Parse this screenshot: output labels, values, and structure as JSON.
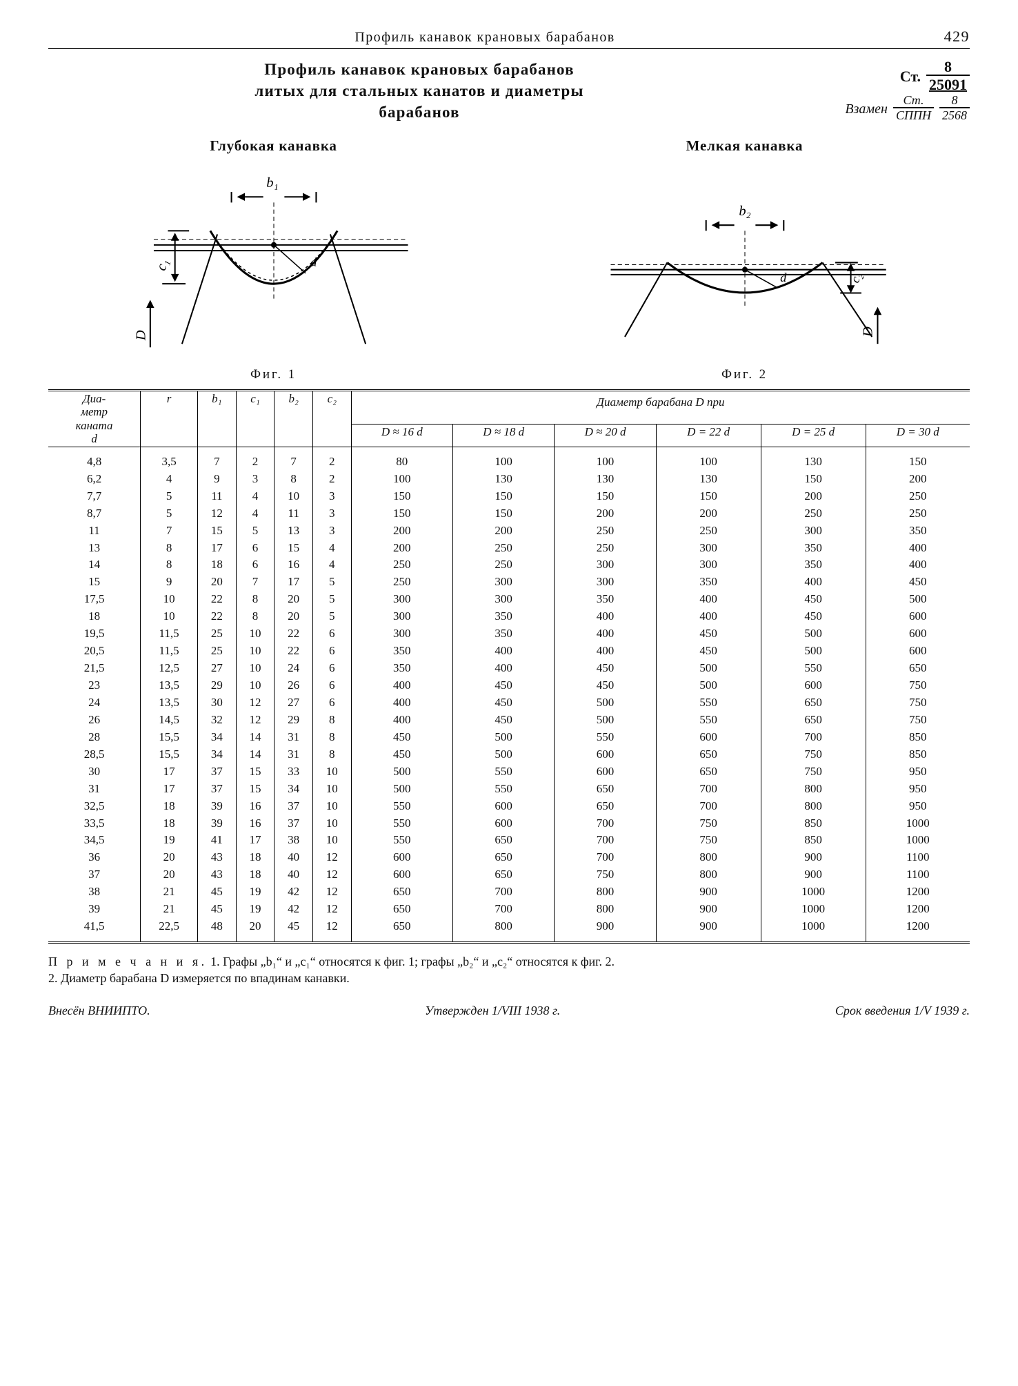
{
  "header": {
    "running_title": "Профиль канавок крановых барабанов",
    "page_number": "429"
  },
  "title": {
    "line1": "Профиль канавок крановых барабанов",
    "line2": "литых для стальных канатов и диаметры",
    "line3": "барабанов"
  },
  "reference": {
    "st_label": "Ст.",
    "st_num": "8",
    "st_den": "25091",
    "vzamen_label": "Взамен",
    "vz1_num": "Ст.",
    "vz1_den": "СППН",
    "vz2_num": "8",
    "vz2_den": "2568"
  },
  "figures": {
    "fig1": {
      "heading": "Глубокая канавка",
      "caption": "Фиг. 1",
      "b_label": "b₁",
      "c_label": "c₁",
      "d_label": "d",
      "D_label": "D"
    },
    "fig2": {
      "heading": "Мелкая канавка",
      "caption": "Фиг. 2",
      "b_label": "b₂",
      "c_label": "c₂",
      "d_label": "d",
      "D_label": "D"
    }
  },
  "table": {
    "head": {
      "d": "Диа-\nметр\nканата\nd",
      "r": "r",
      "b1": "b₁",
      "c1": "c₁",
      "b2": "b₂",
      "c2": "c₂",
      "D_span": "Диаметр барабана D при",
      "D_cols": [
        "D ≈ 16 d",
        "D ≈ 18 d",
        "D ≈ 20 d",
        "D = 22 d",
        "D = 25 d",
        "D = 30 d"
      ]
    },
    "rows": [
      {
        "d": "4,8",
        "r": "3,5",
        "b1": "7",
        "c1": "2",
        "b2": "7",
        "c2": "2",
        "D": [
          "80",
          "100",
          "100",
          "100",
          "130",
          "150"
        ]
      },
      {
        "d": "6,2",
        "r": "4",
        "b1": "9",
        "c1": "3",
        "b2": "8",
        "c2": "2",
        "D": [
          "100",
          "130",
          "130",
          "130",
          "150",
          "200"
        ]
      },
      {
        "d": "7,7",
        "r": "5",
        "b1": "11",
        "c1": "4",
        "b2": "10",
        "c2": "3",
        "D": [
          "150",
          "150",
          "150",
          "150",
          "200",
          "250"
        ]
      },
      {
        "d": "8,7",
        "r": "5",
        "b1": "12",
        "c1": "4",
        "b2": "11",
        "c2": "3",
        "D": [
          "150",
          "150",
          "200",
          "200",
          "250",
          "250"
        ]
      },
      {
        "d": "11",
        "r": "7",
        "b1": "15",
        "c1": "5",
        "b2": "13",
        "c2": "3",
        "D": [
          "200",
          "200",
          "250",
          "250",
          "300",
          "350"
        ]
      },
      {
        "d": "13",
        "r": "8",
        "b1": "17",
        "c1": "6",
        "b2": "15",
        "c2": "4",
        "D": [
          "200",
          "250",
          "250",
          "300",
          "350",
          "400"
        ]
      },
      {
        "d": "14",
        "r": "8",
        "b1": "18",
        "c1": "6",
        "b2": "16",
        "c2": "4",
        "D": [
          "250",
          "250",
          "300",
          "300",
          "350",
          "400"
        ]
      },
      {
        "d": "15",
        "r": "9",
        "b1": "20",
        "c1": "7",
        "b2": "17",
        "c2": "5",
        "D": [
          "250",
          "300",
          "300",
          "350",
          "400",
          "450"
        ]
      },
      {
        "d": "17,5",
        "r": "10",
        "b1": "22",
        "c1": "8",
        "b2": "20",
        "c2": "5",
        "D": [
          "300",
          "300",
          "350",
          "400",
          "450",
          "500"
        ]
      },
      {
        "d": "18",
        "r": "10",
        "b1": "22",
        "c1": "8",
        "b2": "20",
        "c2": "5",
        "D": [
          "300",
          "350",
          "400",
          "400",
          "450",
          "600"
        ]
      },
      {
        "d": "19,5",
        "r": "11,5",
        "b1": "25",
        "c1": "10",
        "b2": "22",
        "c2": "6",
        "D": [
          "300",
          "350",
          "400",
          "450",
          "500",
          "600"
        ]
      },
      {
        "d": "20,5",
        "r": "11,5",
        "b1": "25",
        "c1": "10",
        "b2": "22",
        "c2": "6",
        "D": [
          "350",
          "400",
          "400",
          "450",
          "500",
          "600"
        ]
      },
      {
        "d": "21,5",
        "r": "12,5",
        "b1": "27",
        "c1": "10",
        "b2": "24",
        "c2": "6",
        "D": [
          "350",
          "400",
          "450",
          "500",
          "550",
          "650"
        ]
      },
      {
        "d": "23",
        "r": "13,5",
        "b1": "29",
        "c1": "10",
        "b2": "26",
        "c2": "6",
        "D": [
          "400",
          "450",
          "450",
          "500",
          "600",
          "750"
        ]
      },
      {
        "d": "24",
        "r": "13,5",
        "b1": "30",
        "c1": "12",
        "b2": "27",
        "c2": "6",
        "D": [
          "400",
          "450",
          "500",
          "550",
          "650",
          "750"
        ]
      },
      {
        "d": "26",
        "r": "14,5",
        "b1": "32",
        "c1": "12",
        "b2": "29",
        "c2": "8",
        "D": [
          "400",
          "450",
          "500",
          "550",
          "650",
          "750"
        ]
      },
      {
        "d": "28",
        "r": "15,5",
        "b1": "34",
        "c1": "14",
        "b2": "31",
        "c2": "8",
        "D": [
          "450",
          "500",
          "550",
          "600",
          "700",
          "850"
        ]
      },
      {
        "d": "28,5",
        "r": "15,5",
        "b1": "34",
        "c1": "14",
        "b2": "31",
        "c2": "8",
        "D": [
          "450",
          "500",
          "600",
          "650",
          "750",
          "850"
        ]
      },
      {
        "d": "30",
        "r": "17",
        "b1": "37",
        "c1": "15",
        "b2": "33",
        "c2": "10",
        "D": [
          "500",
          "550",
          "600",
          "650",
          "750",
          "950"
        ]
      },
      {
        "d": "31",
        "r": "17",
        "b1": "37",
        "c1": "15",
        "b2": "34",
        "c2": "10",
        "D": [
          "500",
          "550",
          "650",
          "700",
          "800",
          "950"
        ]
      },
      {
        "d": "32,5",
        "r": "18",
        "b1": "39",
        "c1": "16",
        "b2": "37",
        "c2": "10",
        "D": [
          "550",
          "600",
          "650",
          "700",
          "800",
          "950"
        ]
      },
      {
        "d": "33,5",
        "r": "18",
        "b1": "39",
        "c1": "16",
        "b2": "37",
        "c2": "10",
        "D": [
          "550",
          "600",
          "700",
          "750",
          "850",
          "1000"
        ]
      },
      {
        "d": "34,5",
        "r": "19",
        "b1": "41",
        "c1": "17",
        "b2": "38",
        "c2": "10",
        "D": [
          "550",
          "650",
          "700",
          "750",
          "850",
          "1000"
        ]
      },
      {
        "d": "36",
        "r": "20",
        "b1": "43",
        "c1": "18",
        "b2": "40",
        "c2": "12",
        "D": [
          "600",
          "650",
          "700",
          "800",
          "900",
          "1100"
        ]
      },
      {
        "d": "37",
        "r": "20",
        "b1": "43",
        "c1": "18",
        "b2": "40",
        "c2": "12",
        "D": [
          "600",
          "650",
          "750",
          "800",
          "900",
          "1100"
        ]
      },
      {
        "d": "38",
        "r": "21",
        "b1": "45",
        "c1": "19",
        "b2": "42",
        "c2": "12",
        "D": [
          "650",
          "700",
          "800",
          "900",
          "1000",
          "1200"
        ]
      },
      {
        "d": "39",
        "r": "21",
        "b1": "45",
        "c1": "19",
        "b2": "42",
        "c2": "12",
        "D": [
          "650",
          "700",
          "800",
          "900",
          "1000",
          "1200"
        ]
      },
      {
        "d": "41,5",
        "r": "22,5",
        "b1": "48",
        "c1": "20",
        "b2": "45",
        "c2": "12",
        "D": [
          "650",
          "800",
          "900",
          "900",
          "1000",
          "1200"
        ]
      }
    ]
  },
  "notes": {
    "lead": "П р и м е ч а н и я.",
    "n1": "1. Графы „b₁“ и „c₁“ относятся к фиг. 1; графы „b₂“ и „c₂“ относятся к фиг. 2.",
    "n2": "2. Диаметр барабана D измеряется по впадинам канавки."
  },
  "footer": {
    "left": "Внесён ВНИИПТО.",
    "mid": "Утвержден 1/VIII 1938 г.",
    "right": "Срок введения 1/V 1939 г."
  },
  "style": {
    "line_color": "#000000",
    "bg": "#ffffff"
  }
}
